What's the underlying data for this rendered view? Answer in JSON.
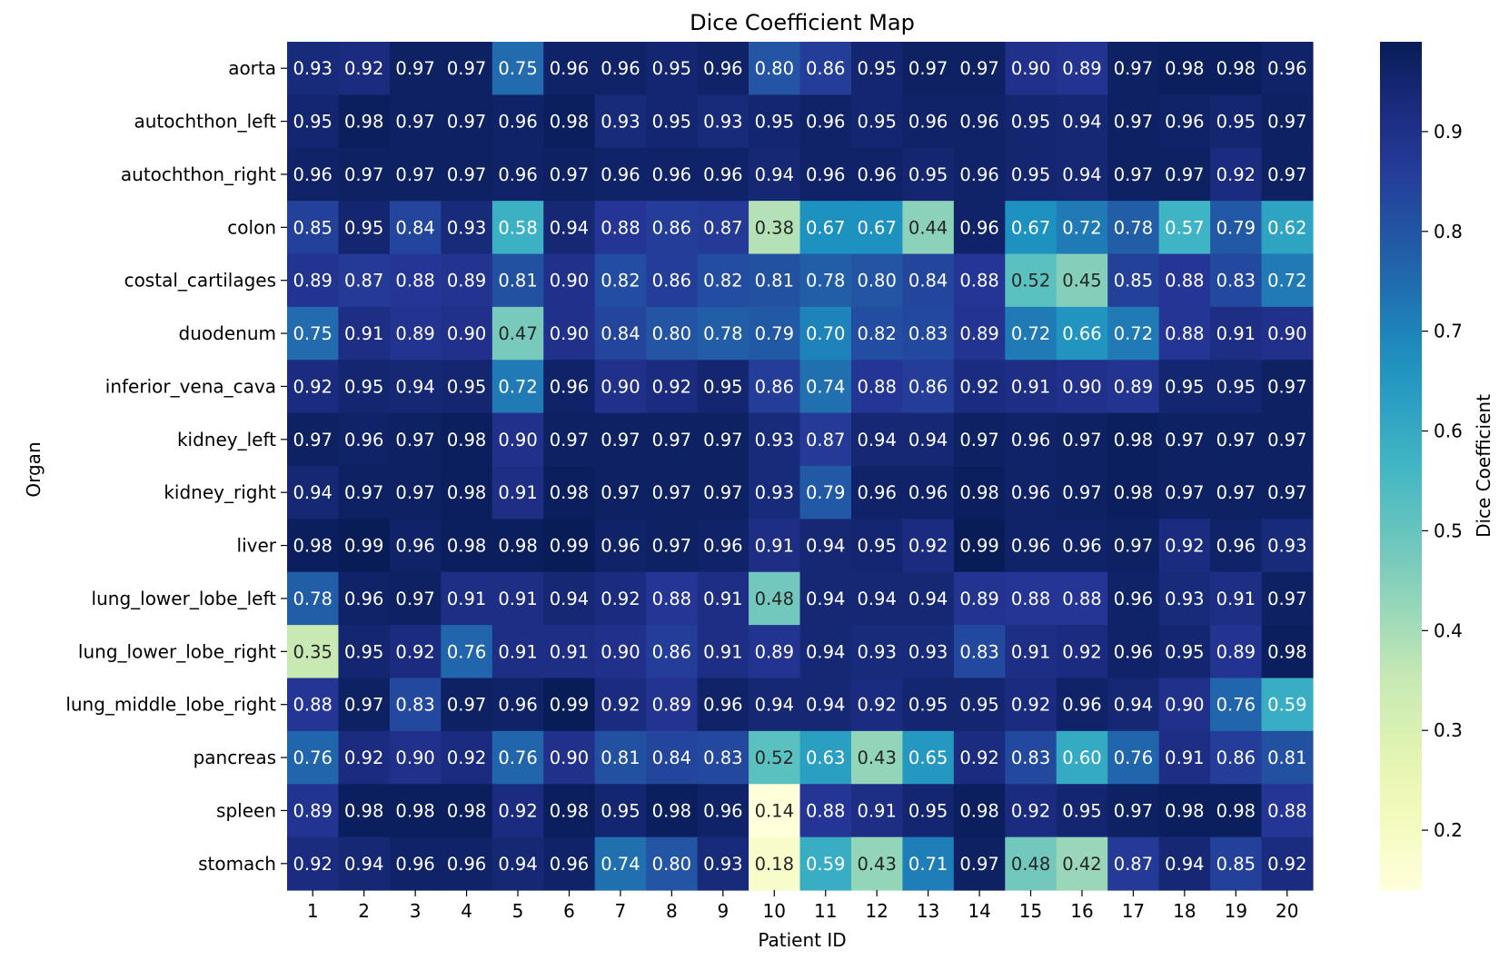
{
  "chart_data": {
    "type": "heatmap",
    "title": "Dice Coefficient Map",
    "xlabel": "Patient ID",
    "ylabel": "Organ",
    "colorbar_label": "Dice Coefficient",
    "colormap": "YlGnBu",
    "value_range": [
      0.14,
      0.99
    ],
    "colorbar_ticks": [
      0.9,
      0.8,
      0.7,
      0.6,
      0.5,
      0.4,
      0.3,
      0.2
    ],
    "x_categories": [
      "1",
      "2",
      "3",
      "4",
      "5",
      "6",
      "7",
      "8",
      "9",
      "10",
      "11",
      "12",
      "13",
      "14",
      "15",
      "16",
      "17",
      "18",
      "19",
      "20"
    ],
    "y_categories": [
      "aorta",
      "autochthon_left",
      "autochthon_right",
      "colon",
      "costal_cartilages",
      "duodenum",
      "inferior_vena_cava",
      "kidney_left",
      "kidney_right",
      "liver",
      "lung_lower_lobe_left",
      "lung_lower_lobe_right",
      "lung_middle_lobe_right",
      "pancreas",
      "spleen",
      "stomach"
    ],
    "values": [
      [
        0.93,
        0.92,
        0.97,
        0.97,
        0.75,
        0.96,
        0.96,
        0.95,
        0.96,
        0.8,
        0.86,
        0.95,
        0.97,
        0.97,
        0.9,
        0.89,
        0.97,
        0.98,
        0.98,
        0.96
      ],
      [
        0.95,
        0.98,
        0.97,
        0.97,
        0.96,
        0.98,
        0.93,
        0.95,
        0.93,
        0.95,
        0.96,
        0.95,
        0.96,
        0.96,
        0.95,
        0.94,
        0.97,
        0.96,
        0.95,
        0.97
      ],
      [
        0.96,
        0.97,
        0.97,
        0.97,
        0.96,
        0.97,
        0.96,
        0.96,
        0.96,
        0.94,
        0.96,
        0.96,
        0.95,
        0.96,
        0.95,
        0.94,
        0.97,
        0.97,
        0.92,
        0.97
      ],
      [
        0.85,
        0.95,
        0.84,
        0.93,
        0.58,
        0.94,
        0.88,
        0.86,
        0.87,
        0.38,
        0.67,
        0.67,
        0.44,
        0.96,
        0.67,
        0.72,
        0.78,
        0.57,
        0.79,
        0.62
      ],
      [
        0.89,
        0.87,
        0.88,
        0.89,
        0.81,
        0.9,
        0.82,
        0.86,
        0.82,
        0.81,
        0.78,
        0.8,
        0.84,
        0.88,
        0.52,
        0.45,
        0.85,
        0.88,
        0.83,
        0.72
      ],
      [
        0.75,
        0.91,
        0.89,
        0.9,
        0.47,
        0.9,
        0.84,
        0.8,
        0.78,
        0.79,
        0.7,
        0.82,
        0.83,
        0.89,
        0.72,
        0.66,
        0.72,
        0.88,
        0.91,
        0.9
      ],
      [
        0.92,
        0.95,
        0.94,
        0.95,
        0.72,
        0.96,
        0.9,
        0.92,
        0.95,
        0.86,
        0.74,
        0.88,
        0.86,
        0.92,
        0.91,
        0.9,
        0.89,
        0.95,
        0.95,
        0.97
      ],
      [
        0.97,
        0.96,
        0.97,
        0.98,
        0.9,
        0.97,
        0.97,
        0.97,
        0.97,
        0.93,
        0.87,
        0.94,
        0.94,
        0.97,
        0.96,
        0.97,
        0.98,
        0.97,
        0.97,
        0.97
      ],
      [
        0.94,
        0.97,
        0.97,
        0.98,
        0.91,
        0.98,
        0.97,
        0.97,
        0.97,
        0.93,
        0.79,
        0.96,
        0.96,
        0.98,
        0.96,
        0.97,
        0.98,
        0.97,
        0.97,
        0.97
      ],
      [
        0.98,
        0.99,
        0.96,
        0.98,
        0.98,
        0.99,
        0.96,
        0.97,
        0.96,
        0.91,
        0.94,
        0.95,
        0.92,
        0.99,
        0.96,
        0.96,
        0.97,
        0.92,
        0.96,
        0.93
      ],
      [
        0.78,
        0.96,
        0.97,
        0.91,
        0.91,
        0.94,
        0.92,
        0.88,
        0.91,
        0.48,
        0.94,
        0.94,
        0.94,
        0.89,
        0.88,
        0.88,
        0.96,
        0.93,
        0.91,
        0.97
      ],
      [
        0.35,
        0.95,
        0.92,
        0.76,
        0.91,
        0.91,
        0.9,
        0.86,
        0.91,
        0.89,
        0.94,
        0.93,
        0.93,
        0.83,
        0.91,
        0.92,
        0.96,
        0.95,
        0.89,
        0.98
      ],
      [
        0.88,
        0.97,
        0.83,
        0.97,
        0.96,
        0.99,
        0.92,
        0.89,
        0.96,
        0.94,
        0.94,
        0.92,
        0.95,
        0.95,
        0.92,
        0.96,
        0.94,
        0.9,
        0.76,
        0.59
      ],
      [
        0.76,
        0.92,
        0.9,
        0.92,
        0.76,
        0.9,
        0.81,
        0.84,
        0.83,
        0.52,
        0.63,
        0.43,
        0.65,
        0.92,
        0.83,
        0.6,
        0.76,
        0.91,
        0.86,
        0.81
      ],
      [
        0.89,
        0.98,
        0.98,
        0.98,
        0.92,
        0.98,
        0.95,
        0.98,
        0.96,
        0.14,
        0.88,
        0.91,
        0.95,
        0.98,
        0.92,
        0.95,
        0.97,
        0.98,
        0.98,
        0.88
      ],
      [
        0.92,
        0.94,
        0.96,
        0.96,
        0.94,
        0.96,
        0.74,
        0.8,
        0.93,
        0.18,
        0.59,
        0.43,
        0.71,
        0.97,
        0.48,
        0.42,
        0.87,
        0.94,
        0.85,
        0.92
      ]
    ],
    "annotations": "cell values shown with 2 decimals",
    "grid": false
  }
}
